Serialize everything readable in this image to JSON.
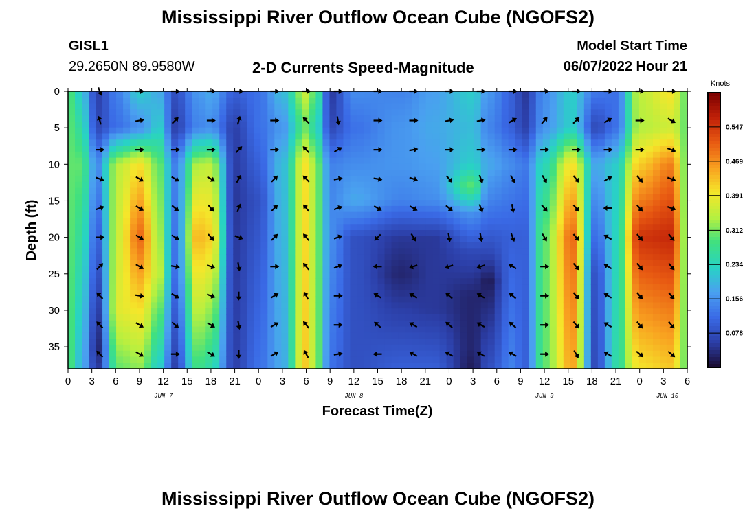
{
  "page": {
    "title": "Mississippi River Outflow Ocean Cube (NGOFS2)",
    "station_id": "GISL1",
    "station_coords": "29.2650N  89.9580W",
    "subtitle": "2-D Currents Speed-Magnitude",
    "model_start_label": "Model Start Time",
    "model_start_value": "06/07/2022 Hour 21",
    "bottom_title": "Mississippi River Outflow Ocean Cube (NGOFS2)"
  },
  "chart_data": {
    "type": "heatmap",
    "title": "2-D Currents Speed-Magnitude",
    "xlabel": "Forecast Time(Z)",
    "ylabel": "Depth (ft)",
    "x_unit": "hours since 06/07/2022 00Z",
    "x_range": [
      0,
      78
    ],
    "x_tick_labels": [
      "0",
      "3",
      "6",
      "9",
      "12",
      "15",
      "18",
      "21",
      "0",
      "3",
      "6",
      "9",
      "12",
      "15",
      "18",
      "21",
      "0",
      "3",
      "6",
      "9",
      "12",
      "15",
      "18",
      "21",
      "0",
      "3",
      "6"
    ],
    "day_labels": [
      "JUN 7",
      "JUN 8",
      "JUN 9",
      "JUN 10"
    ],
    "day_label_hours": [
      12,
      36,
      60,
      75.5
    ],
    "y_range": [
      0,
      38
    ],
    "y_ticks": [
      0,
      5,
      10,
      15,
      20,
      25,
      30,
      35
    ],
    "colorbar": {
      "label": "Knots",
      "range": [
        0,
        0.625
      ],
      "ticks": [
        0.078,
        0.156,
        0.234,
        0.312,
        0.391,
        0.469,
        0.547
      ],
      "colors": [
        "#1a0a2e",
        "#2c3fa8",
        "#3a6ae6",
        "#4aa0f0",
        "#28d3c4",
        "#40e080",
        "#b6f040",
        "#f5e62a",
        "#f8a020",
        "#e85a12",
        "#c02008",
        "#7a0000"
      ]
    },
    "speed_columns": [
      {
        "hour": 0,
        "profile": [
          [
            0,
            0.3
          ],
          [
            38,
            0.3
          ]
        ]
      },
      {
        "hour": 1.5,
        "profile": [
          [
            0,
            0.22
          ],
          [
            10,
            0.3
          ],
          [
            38,
            0.2
          ]
        ]
      },
      {
        "hour": 3.7,
        "profile": [
          [
            0,
            0.06
          ],
          [
            5,
            0.07
          ],
          [
            10,
            0.15
          ],
          [
            20,
            0.1
          ],
          [
            35,
            0.03
          ],
          [
            38,
            0.05
          ]
        ]
      },
      {
        "hour": 6.3,
        "profile": [
          [
            0,
            0.14
          ],
          [
            5,
            0.12
          ],
          [
            10,
            0.35
          ],
          [
            30,
            0.38
          ],
          [
            38,
            0.3
          ]
        ]
      },
      {
        "hour": 9,
        "profile": [
          [
            0,
            0.22
          ],
          [
            5,
            0.15
          ],
          [
            10,
            0.4
          ],
          [
            20,
            0.5
          ],
          [
            38,
            0.32
          ]
        ]
      },
      {
        "hour": 11.5,
        "profile": [
          [
            0,
            0.18
          ],
          [
            5,
            0.22
          ],
          [
            10,
            0.3
          ],
          [
            25,
            0.35
          ],
          [
            38,
            0.22
          ]
        ]
      },
      {
        "hour": 13.5,
        "profile": [
          [
            0,
            0.08
          ],
          [
            5,
            0.06
          ],
          [
            10,
            0.14
          ],
          [
            25,
            0.12
          ],
          [
            38,
            0.06
          ]
        ]
      },
      {
        "hour": 16.3,
        "profile": [
          [
            0,
            0.16
          ],
          [
            5,
            0.14
          ],
          [
            10,
            0.34
          ],
          [
            20,
            0.44
          ],
          [
            38,
            0.28
          ]
        ]
      },
      {
        "hour": 18,
        "profile": [
          [
            0,
            0.18
          ],
          [
            5,
            0.15
          ],
          [
            10,
            0.35
          ],
          [
            20,
            0.42
          ],
          [
            38,
            0.25
          ]
        ]
      },
      {
        "hour": 21,
        "profile": [
          [
            0,
            0.1
          ],
          [
            5,
            0.06
          ],
          [
            15,
            0.05
          ],
          [
            38,
            0.06
          ]
        ]
      },
      {
        "hour": 24,
        "profile": [
          [
            0,
            0.12
          ],
          [
            5,
            0.12
          ],
          [
            15,
            0.08
          ],
          [
            38,
            0.12
          ]
        ]
      },
      {
        "hour": 27,
        "profile": [
          [
            0,
            0.2
          ],
          [
            5,
            0.16
          ],
          [
            10,
            0.2
          ],
          [
            38,
            0.18
          ]
        ]
      },
      {
        "hour": 30,
        "profile": [
          [
            0,
            0.36
          ],
          [
            5,
            0.3
          ],
          [
            10,
            0.4
          ],
          [
            38,
            0.42
          ]
        ]
      },
      {
        "hour": 31.5,
        "profile": [
          [
            0,
            0.26
          ],
          [
            5,
            0.22
          ],
          [
            10,
            0.3
          ],
          [
            38,
            0.3
          ]
        ]
      },
      {
        "hour": 33,
        "profile": [
          [
            0,
            0.05
          ],
          [
            5,
            0.07
          ],
          [
            10,
            0.14
          ],
          [
            20,
            0.15
          ],
          [
            38,
            0.12
          ]
        ]
      },
      {
        "hour": 36,
        "profile": [
          [
            0,
            0.15
          ],
          [
            5,
            0.12
          ],
          [
            10,
            0.15
          ],
          [
            15,
            0.18
          ],
          [
            20,
            0.08
          ],
          [
            38,
            0.08
          ]
        ]
      },
      {
        "hour": 42,
        "profile": [
          [
            0,
            0.14
          ],
          [
            5,
            0.16
          ],
          [
            10,
            0.16
          ],
          [
            15,
            0.14
          ],
          [
            20,
            0.05
          ],
          [
            25,
            0.03
          ],
          [
            38,
            0.1
          ]
        ]
      },
      {
        "hour": 46,
        "profile": [
          [
            0,
            0.17
          ],
          [
            5,
            0.18
          ],
          [
            10,
            0.17
          ],
          [
            15,
            0.15
          ],
          [
            20,
            0.05
          ],
          [
            30,
            0.05
          ],
          [
            38,
            0.1
          ]
        ]
      },
      {
        "hour": 51,
        "profile": [
          [
            0,
            0.22
          ],
          [
            5,
            0.2
          ],
          [
            10,
            0.22
          ],
          [
            13,
            0.3
          ],
          [
            17,
            0.15
          ],
          [
            22,
            0.07
          ],
          [
            28,
            0.03
          ],
          [
            35,
            0.03
          ],
          [
            38,
            0.02
          ]
        ]
      },
      {
        "hour": 53,
        "profile": [
          [
            0,
            0.16
          ],
          [
            5,
            0.14
          ],
          [
            10,
            0.18
          ],
          [
            15,
            0.14
          ],
          [
            22,
            0.07
          ],
          [
            26,
            0.02
          ],
          [
            38,
            0.08
          ]
        ]
      },
      {
        "hour": 56,
        "profile": [
          [
            0,
            0.1
          ],
          [
            5,
            0.1
          ],
          [
            10,
            0.15
          ],
          [
            20,
            0.1
          ],
          [
            38,
            0.14
          ]
        ]
      },
      {
        "hour": 57.5,
        "profile": [
          [
            0,
            0.05
          ],
          [
            5,
            0.06
          ],
          [
            10,
            0.13
          ],
          [
            20,
            0.1
          ],
          [
            38,
            0.1
          ]
        ]
      },
      {
        "hour": 60,
        "profile": [
          [
            0,
            0.15
          ],
          [
            5,
            0.16
          ],
          [
            10,
            0.24
          ],
          [
            20,
            0.3
          ],
          [
            38,
            0.3
          ]
        ]
      },
      {
        "hour": 63.5,
        "profile": [
          [
            0,
            0.22
          ],
          [
            5,
            0.22
          ],
          [
            10,
            0.4
          ],
          [
            20,
            0.5
          ],
          [
            38,
            0.45
          ]
        ]
      },
      {
        "hour": 66.5,
        "profile": [
          [
            0,
            0.13
          ],
          [
            5,
            0.07
          ],
          [
            10,
            0.18
          ],
          [
            25,
            0.08
          ],
          [
            38,
            0.07
          ]
        ]
      },
      {
        "hour": 69,
        "profile": [
          [
            0,
            0.12
          ],
          [
            5,
            0.12
          ],
          [
            10,
            0.22
          ],
          [
            38,
            0.25
          ]
        ]
      },
      {
        "hour": 72,
        "profile": [
          [
            0,
            0.35
          ],
          [
            5,
            0.34
          ],
          [
            10,
            0.42
          ],
          [
            20,
            0.55
          ],
          [
            38,
            0.4
          ]
        ]
      },
      {
        "hour": 76,
        "profile": [
          [
            0,
            0.4
          ],
          [
            5,
            0.36
          ],
          [
            10,
            0.48
          ],
          [
            20,
            0.56
          ],
          [
            38,
            0.42
          ]
        ]
      },
      {
        "hour": 78,
        "profile": [
          [
            0,
            0.3
          ],
          [
            38,
            0.3
          ]
        ]
      }
    ],
    "arrow_depths": [
      0,
      4,
      8,
      12,
      16,
      20,
      24,
      28,
      32,
      36
    ],
    "arrow_columns": [
      {
        "hour": 4,
        "dirs": [
          160,
          345,
          90,
          110,
          70,
          90,
          45,
          315,
          315,
          315
        ]
      },
      {
        "hour": 9,
        "dirs": [
          90,
          80,
          90,
          120,
          120,
          120,
          120,
          100,
          120,
          120
        ]
      },
      {
        "hour": 13.5,
        "dirs": [
          90,
          45,
          90,
          120,
          130,
          120,
          100,
          120,
          130,
          90
        ]
      },
      {
        "hour": 18,
        "dirs": [
          90,
          90,
          90,
          120,
          140,
          140,
          110,
          110,
          120,
          120
        ]
      },
      {
        "hour": 21.5,
        "dirs": [
          90,
          15,
          45,
          30,
          20,
          110,
          170,
          180,
          170,
          180
        ]
      },
      {
        "hour": 26,
        "dirs": [
          90,
          90,
          90,
          45,
          45,
          45,
          90,
          60,
          60,
          60
        ]
      },
      {
        "hour": 30,
        "dirs": [
          90,
          315,
          315,
          315,
          320,
          320,
          320,
          330,
          320,
          330
        ]
      },
      {
        "hour": 34,
        "dirs": [
          90,
          170,
          60,
          80,
          70,
          70,
          70,
          90,
          90,
          80
        ]
      },
      {
        "hour": 39,
        "dirs": [
          90,
          90,
          90,
          100,
          120,
          225,
          270,
          300,
          310,
          270
        ]
      },
      {
        "hour": 43.5,
        "dirs": [
          90,
          90,
          80,
          110,
          120,
          150,
          250,
          300,
          300,
          300
        ]
      },
      {
        "hour": 48,
        "dirs": [
          90,
          80,
          90,
          140,
          130,
          170,
          250,
          310,
          310,
          300
        ]
      },
      {
        "hour": 52,
        "dirs": [
          90,
          80,
          90,
          160,
          160,
          170,
          250,
          300,
          300,
          300
        ]
      },
      {
        "hour": 56,
        "dirs": [
          90,
          60,
          90,
          150,
          170,
          160,
          300,
          310,
          310,
          300
        ]
      },
      {
        "hour": 60,
        "dirs": [
          90,
          40,
          90,
          150,
          140,
          150,
          90,
          90,
          90,
          90
        ]
      },
      {
        "hour": 64,
        "dirs": [
          90,
          45,
          90,
          140,
          140,
          140,
          140,
          140,
          140,
          150
        ]
      },
      {
        "hour": 68,
        "dirs": [
          90,
          60,
          90,
          60,
          270,
          300,
          300,
          300,
          300,
          300
        ]
      },
      {
        "hour": 72,
        "dirs": [
          90,
          90,
          90,
          140,
          140,
          140,
          140,
          140,
          140,
          130
        ]
      },
      {
        "hour": 76,
        "dirs": [
          90,
          120,
          110,
          110,
          110,
          140,
          140,
          140,
          140,
          130
        ]
      }
    ]
  }
}
